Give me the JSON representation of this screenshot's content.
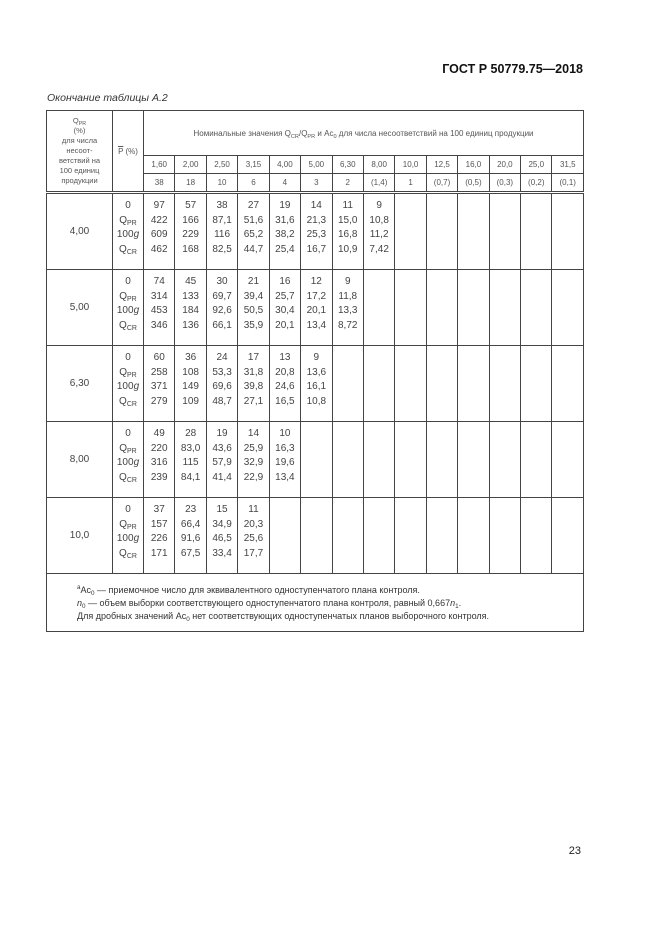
{
  "header": {
    "standard": "ГОСТ Р 50779.75—2018"
  },
  "caption": "Окончание таблицы А.2",
  "page_number": "23",
  "table": {
    "col1_header": [
      {
        "t": "Q"
      },
      {
        "s": "PR"
      },
      {
        "br": 1
      },
      {
        "t": "(%)"
      },
      {
        "br": 1
      },
      {
        "t": "для числа"
      },
      {
        "br": 1
      },
      {
        "t": "несоот-"
      },
      {
        "br": 1
      },
      {
        "t": "ветствий на"
      },
      {
        "br": 1
      },
      {
        "t": "100 единиц"
      },
      {
        "br": 1
      },
      {
        "t": "продукции"
      }
    ],
    "col2_header": {
      "p": "P",
      "unit": " (%)"
    },
    "main_header": [
      {
        "t": "Номинальные значения Q"
      },
      {
        "s": "CR"
      },
      {
        "t": "/Q"
      },
      {
        "s": "PR"
      },
      {
        "t": " и Ac"
      },
      {
        "s": "0"
      },
      {
        "t": " для числа несоответствий на 100 единиц продукции"
      }
    ],
    "ratios": [
      "1,60",
      "2,00",
      "2,50",
      "3,15",
      "4,00",
      "5,00",
      "6,30",
      "8,00",
      "10,0",
      "12,5",
      "16,0",
      "20,0",
      "25,0",
      "31,5"
    ],
    "ac_values": [
      "38",
      "18",
      "10",
      "6",
      "4",
      "3",
      "2",
      "(1,4)",
      "1",
      "(0,7)",
      "(0,5)",
      "(0,3)",
      "(0,2)",
      "(0,1)"
    ],
    "row_labels": [
      [
        {
          "t": "0"
        }
      ],
      [
        {
          "t": "Q"
        },
        {
          "s": "PR"
        }
      ],
      [
        {
          "t": "100"
        },
        {
          "i": "g"
        }
      ],
      [
        {
          "t": "Q"
        },
        {
          "s": "CR"
        }
      ]
    ],
    "groups": [
      {
        "qpr": "4,00",
        "cols": [
          [
            "97",
            "422",
            "609",
            "462"
          ],
          [
            "57",
            "166",
            "229",
            "168"
          ],
          [
            "38",
            "87,1",
            "116",
            "82,5"
          ],
          [
            "27",
            "51,6",
            "65,2",
            "44,7"
          ],
          [
            "19",
            "31,6",
            "38,2",
            "25,4"
          ],
          [
            "14",
            "21,3",
            "25,3",
            "16,7"
          ],
          [
            "11",
            "15,0",
            "16,8",
            "10,9"
          ],
          [
            "9",
            "10,8",
            "11,2",
            "7,42"
          ]
        ]
      },
      {
        "qpr": "5,00",
        "cols": [
          [
            "74",
            "314",
            "453",
            "346"
          ],
          [
            "45",
            "133",
            "184",
            "136"
          ],
          [
            "30",
            "69,7",
            "92,6",
            "66,1"
          ],
          [
            "21",
            "39,4",
            "50,5",
            "35,9"
          ],
          [
            "16",
            "25,7",
            "30,4",
            "20,1"
          ],
          [
            "12",
            "17,2",
            "20,1",
            "13,4"
          ],
          [
            "9",
            "11,8",
            "13,3",
            "8,72"
          ]
        ]
      },
      {
        "qpr": "6,30",
        "cols": [
          [
            "60",
            "258",
            "371",
            "279"
          ],
          [
            "36",
            "108",
            "149",
            "109"
          ],
          [
            "24",
            "53,3",
            "69,6",
            "48,7"
          ],
          [
            "17",
            "31,8",
            "39,8",
            "27,1"
          ],
          [
            "13",
            "20,8",
            "24,6",
            "16,5"
          ],
          [
            "9",
            "13,6",
            "16,1",
            "10,8"
          ]
        ]
      },
      {
        "qpr": "8,00",
        "cols": [
          [
            "49",
            "220",
            "316",
            "239"
          ],
          [
            "28",
            "83,0",
            "115",
            "84,1"
          ],
          [
            "19",
            "43,6",
            "57,9",
            "41,4"
          ],
          [
            "14",
            "25,9",
            "32,9",
            "22,9"
          ],
          [
            "10",
            "16,3",
            "19,6",
            "13,4"
          ]
        ]
      },
      {
        "qpr": "10,0",
        "cols": [
          [
            "37",
            "157",
            "226",
            "171"
          ],
          [
            "23",
            "66,4",
            "91,6",
            "67,5"
          ],
          [
            "15",
            "34,9",
            "46,5",
            "33,4"
          ],
          [
            "11",
            "20,3",
            "25,6",
            "17,7"
          ]
        ]
      }
    ],
    "footnotes": [
      [
        {
          "sup": "a"
        },
        {
          "t": "Ac"
        },
        {
          "s": "0"
        },
        {
          "t": " — приемочное число для эквивалентного одноступенчатого плана контроля."
        }
      ],
      [
        {
          "i": "n"
        },
        {
          "s": "0"
        },
        {
          "t": " — объем выборки соответствующего одноступенчатого плана контроля, равный 0,667"
        },
        {
          "i": "n"
        },
        {
          "s": "1"
        },
        {
          "t": "."
        }
      ],
      [
        {
          "t": "Для дробных значений Ac"
        },
        {
          "s": "0"
        },
        {
          "t": " нет соответствующих одноступенчатых планов выборочного контроля."
        }
      ]
    ]
  }
}
